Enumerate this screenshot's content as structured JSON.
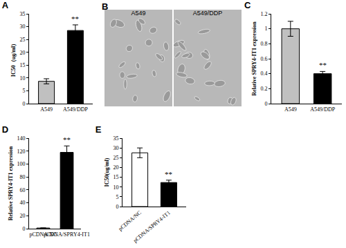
{
  "chart_data": [
    {
      "type": "bar",
      "title": "A",
      "categories": [
        "A549",
        "A549/DDP"
      ],
      "values": [
        8.7,
        28.5
      ],
      "errors": [
        1.0,
        2.2
      ],
      "colors": [
        "#c0c0c0",
        "#000000"
      ],
      "y_label": "IC50（ug/ml）",
      "ylim": [
        0,
        35
      ],
      "yticks": [
        0,
        5,
        10,
        15,
        20,
        25,
        30,
        35
      ],
      "grid": false,
      "annotations": [
        {
          "text": "**",
          "category": "A549/DDP"
        }
      ]
    },
    {
      "type": "bar",
      "title": "C",
      "categories": [
        "A549",
        "A549/DDP"
      ],
      "values": [
        1.0,
        0.4
      ],
      "errors": [
        0.1,
        0.03
      ],
      "colors": [
        "#c0c0c0",
        "#000000"
      ],
      "y_label": "Relative SPRY4-IT1 expression",
      "ylim": [
        0,
        1.2
      ],
      "yticks": [
        0,
        0.2,
        0.4,
        0.6,
        0.8,
        1,
        1.2
      ],
      "grid": false,
      "annotations": [
        {
          "text": "**",
          "category": "A549/DDP"
        }
      ]
    },
    {
      "type": "bar",
      "title": "D",
      "categories": [
        "pCDNA/NC",
        "pCDNA/SPRY4-IT1"
      ],
      "values": [
        1,
        118
      ],
      "errors": [
        0.2,
        10
      ],
      "colors": [
        "#ffffff",
        "#000000"
      ],
      "y_label": "Relative SPRY4-IT1 expression",
      "ylim": [
        0,
        140
      ],
      "yticks": [
        0,
        20,
        40,
        60,
        80,
        100,
        120,
        140
      ],
      "grid": false,
      "annotations": [
        {
          "text": "**",
          "category": "pCDNA/SPRY4-IT1"
        }
      ]
    },
    {
      "type": "bar",
      "title": "E",
      "categories": [
        "pCDNA/NC",
        "pCDNA/SPRY4-IT1"
      ],
      "values": [
        27.5,
        12.3
      ],
      "errors": [
        2.5,
        1.2
      ],
      "colors": [
        "#ffffff",
        "#000000"
      ],
      "y_label": "IC50(ug/ml)",
      "ylim": [
        0,
        35
      ],
      "yticks": [
        0,
        5,
        10,
        15,
        20,
        25,
        30,
        35
      ],
      "grid": false,
      "annotations": [
        {
          "text": "**",
          "category": "pCDNA/SPRY4-IT1"
        }
      ]
    }
  ],
  "image_panel": {
    "title": "B",
    "images": [
      "A549",
      "A549/DDP"
    ]
  }
}
